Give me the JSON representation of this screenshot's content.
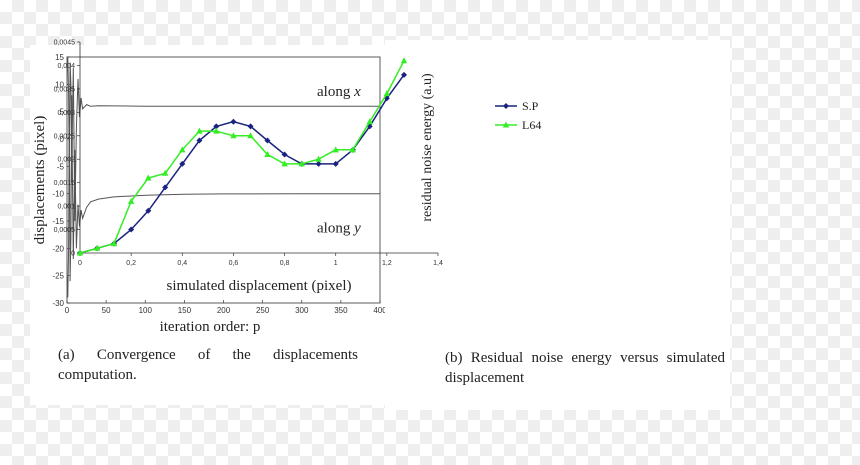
{
  "chart_data": [
    {
      "type": "line",
      "ylabel": "displacements (pixel)",
      "xlabel": "iteration order: p",
      "xlim": [
        0,
        400
      ],
      "ylim": [
        -30,
        15
      ],
      "x_ticks": [
        0,
        50,
        100,
        150,
        200,
        250,
        300,
        350,
        400
      ],
      "x_tick_labels": [
        "0",
        "50",
        "100",
        "150",
        "200",
        "250",
        "300",
        "350",
        "400"
      ],
      "y_ticks": [
        15,
        10,
        5,
        0,
        -5,
        -10,
        -15,
        -20,
        -25,
        -30
      ],
      "y_tick_labels": [
        "15",
        "10",
        "5",
        "0",
        "-5",
        "-10",
        "-15",
        "-20",
        "-25",
        "-30"
      ],
      "series": [
        {
          "name": "along x",
          "annotation": "along ",
          "annotation_var": "x",
          "color": "#555555",
          "x": [
            0,
            1,
            2,
            3,
            4,
            5,
            6,
            7,
            8,
            10,
            12,
            14,
            16,
            18,
            20,
            25,
            30,
            40,
            60,
            100,
            150,
            200,
            300,
            400
          ],
          "y": [
            12,
            15,
            8,
            -5,
            14,
            10,
            -8,
            4,
            13,
            -15,
            2,
            11,
            4,
            7.5,
            5.5,
            6.3,
            6,
            6.1,
            6.05,
            6,
            6,
            6,
            6,
            6
          ]
        },
        {
          "name": "along y",
          "annotation": "along ",
          "annotation_var": "y",
          "color": "#555555",
          "x": [
            0,
            1,
            2,
            3,
            4,
            5,
            6,
            7,
            8,
            10,
            12,
            14,
            16,
            18,
            20,
            25,
            30,
            40,
            60,
            100,
            150,
            200,
            300,
            400
          ],
          "y": [
            -25,
            -29,
            -20,
            5,
            -26,
            -18,
            8,
            -8,
            -22,
            -2,
            -20,
            -12,
            -16,
            -13,
            -14.5,
            -12.5,
            -11.5,
            -11,
            -10.6,
            -10.3,
            -10.1,
            -10.05,
            -10,
            -10
          ]
        }
      ]
    },
    {
      "type": "line",
      "ylabel": "residual noise energy (a.u)",
      "xlabel": "simulated displacement (pixel)",
      "xlim": [
        0,
        1.4
      ],
      "ylim": [
        0,
        0.0045
      ],
      "x_ticks": [
        0,
        0.2,
        0.4,
        0.6,
        0.8,
        1,
        1.2,
        1.4
      ],
      "x_tick_labels": [
        "0",
        "0,2",
        "0,4",
        "0,6",
        "0,8",
        "1",
        "1,2",
        "1,4"
      ],
      "y_ticks": [
        0,
        0.0005,
        0.001,
        0.0015,
        0.002,
        0.0025,
        0.003,
        0.0035,
        0.004,
        0.0045
      ],
      "y_tick_labels": [
        "0",
        "0,0005",
        "0,001",
        "0,0015",
        "0,002",
        "0,0025",
        "0,003",
        "0,0035",
        "0,004",
        "0,0045"
      ],
      "legend_position": "top-left",
      "series": [
        {
          "name": "S.P",
          "color": "#1a237e",
          "marker": "diamond",
          "x": [
            0,
            0.067,
            0.133,
            0.2,
            0.267,
            0.333,
            0.4,
            0.467,
            0.533,
            0.6,
            0.667,
            0.733,
            0.8,
            0.867,
            0.933,
            1.0,
            1.067,
            1.133,
            1.2,
            1.267
          ],
          "y": [
            0,
            0.0001,
            0.0002,
            0.0005,
            0.0009,
            0.0014,
            0.0019,
            0.0024,
            0.0027,
            0.0028,
            0.0027,
            0.0024,
            0.0021,
            0.0019,
            0.0019,
            0.0019,
            0.0022,
            0.0027,
            0.0033,
            0.0038
          ]
        },
        {
          "name": "L64",
          "color": "#33ee22",
          "marker": "triangle",
          "x": [
            0,
            0.067,
            0.133,
            0.2,
            0.267,
            0.333,
            0.4,
            0.467,
            0.533,
            0.6,
            0.667,
            0.733,
            0.8,
            0.867,
            0.933,
            1.0,
            1.067,
            1.133,
            1.2,
            1.267
          ],
          "y": [
            0,
            0.0001,
            0.0002,
            0.0011,
            0.0016,
            0.0017,
            0.0022,
            0.0026,
            0.0026,
            0.0025,
            0.0025,
            0.0021,
            0.0019,
            0.0019,
            0.002,
            0.0022,
            0.0022,
            0.0028,
            0.0034,
            0.0041
          ]
        }
      ]
    }
  ],
  "captions": {
    "a": "(a) Convergence of the displacements computation.",
    "b": "(b) Residual noise energy versus simulated displacement"
  }
}
